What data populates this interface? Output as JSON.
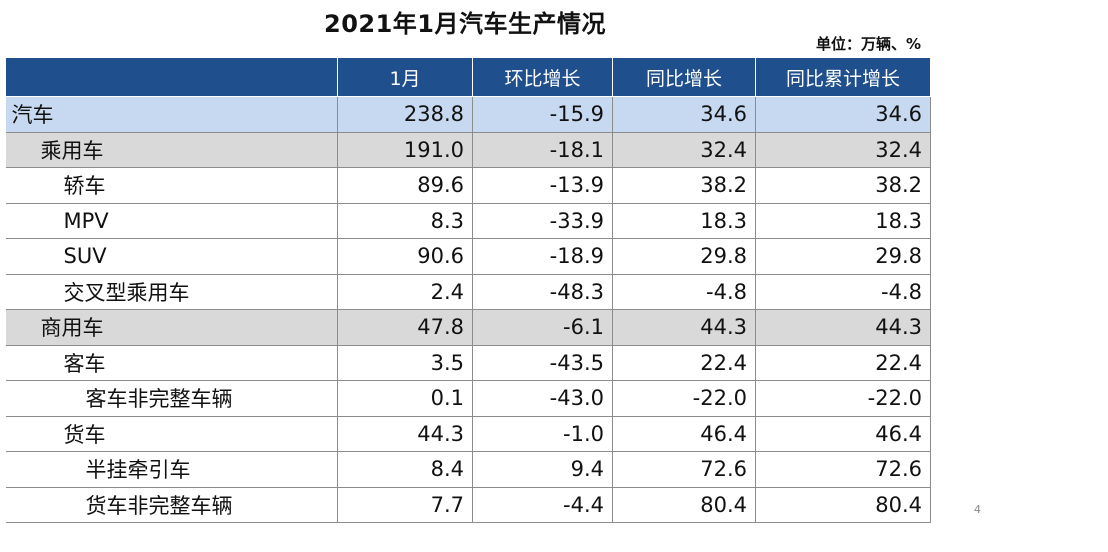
{
  "title": "2021年1月汽车生产情况",
  "unit": "单位：万辆、%",
  "headers": [
    "",
    "1月",
    "环比增长",
    "同比增长",
    "同比累计增长"
  ],
  "rows": [
    {
      "label": "汽车",
      "level": 0,
      "values": [
        "238.8",
        "-15.9",
        "34.6",
        "34.6"
      ]
    },
    {
      "label": "乘用车",
      "level": 1,
      "values": [
        "191.0",
        "-18.1",
        "32.4",
        "32.4"
      ]
    },
    {
      "label": "轿车",
      "level": 2,
      "values": [
        "89.6",
        "-13.9",
        "38.2",
        "38.2"
      ]
    },
    {
      "label": "MPV",
      "level": 2,
      "values": [
        "8.3",
        "-33.9",
        "18.3",
        "18.3"
      ]
    },
    {
      "label": "SUV",
      "level": 2,
      "values": [
        "90.6",
        "-18.9",
        "29.8",
        "29.8"
      ]
    },
    {
      "label": "交叉型乘用车",
      "level": 2,
      "values": [
        "2.4",
        "-48.3",
        "-4.8",
        "-4.8"
      ]
    },
    {
      "label": "商用车",
      "level": 1,
      "values": [
        "47.8",
        "-6.1",
        "44.3",
        "44.3"
      ]
    },
    {
      "label": "客车",
      "level": 2,
      "values": [
        "3.5",
        "-43.5",
        "22.4",
        "22.4"
      ]
    },
    {
      "label": "客车非完整车辆",
      "level": 3,
      "values": [
        "0.1",
        "-43.0",
        "-22.0",
        "-22.0"
      ]
    },
    {
      "label": "货车",
      "level": 2,
      "values": [
        "44.3",
        "-1.0",
        "46.4",
        "46.4"
      ]
    },
    {
      "label": "半挂牵引车",
      "level": 3,
      "values": [
        "8.4",
        "9.4",
        "72.6",
        "72.6"
      ]
    },
    {
      "label": "货车非完整车辆",
      "level": 3,
      "values": [
        "7.7",
        "-4.4",
        "80.4",
        "80.4"
      ]
    }
  ],
  "page_number": "4"
}
